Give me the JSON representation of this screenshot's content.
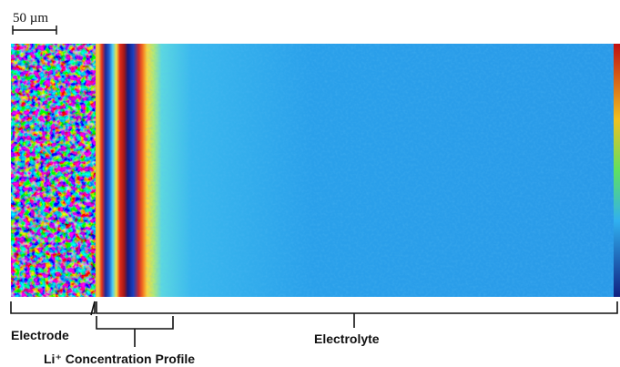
{
  "scale_bar": {
    "label": "50 µm"
  },
  "regions": [
    {
      "label": "Electrode"
    },
    {
      "label": "Li⁺ Concentration Profile"
    },
    {
      "label": "Electrolyte"
    }
  ]
}
